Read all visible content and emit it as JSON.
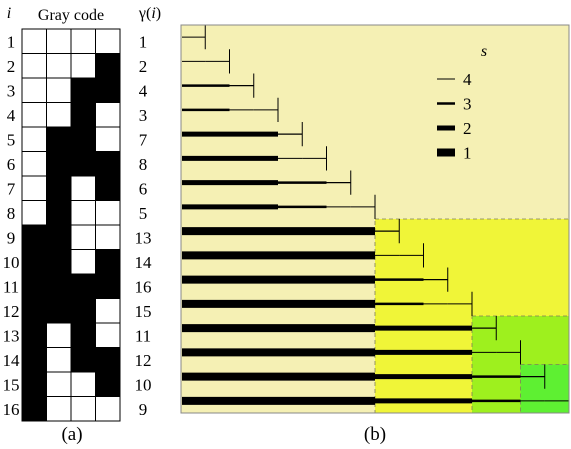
{
  "panel_a": {
    "caption": "(a)",
    "col_i_header": "i",
    "col_gray_header": "Gray code",
    "col_gamma_header_prefix": "γ(",
    "col_gamma_header_var": "i",
    "col_gamma_header_suffix": ")",
    "rows": [
      {
        "i": "1",
        "bits": [
          0,
          0,
          0,
          0
        ],
        "gamma": "1"
      },
      {
        "i": "2",
        "bits": [
          0,
          0,
          0,
          1
        ],
        "gamma": "2"
      },
      {
        "i": "3",
        "bits": [
          0,
          0,
          1,
          1
        ],
        "gamma": "4"
      },
      {
        "i": "4",
        "bits": [
          0,
          0,
          1,
          0
        ],
        "gamma": "3"
      },
      {
        "i": "5",
        "bits": [
          0,
          1,
          1,
          0
        ],
        "gamma": "7"
      },
      {
        "i": "6",
        "bits": [
          0,
          1,
          1,
          1
        ],
        "gamma": "8"
      },
      {
        "i": "7",
        "bits": [
          0,
          1,
          0,
          1
        ],
        "gamma": "6"
      },
      {
        "i": "8",
        "bits": [
          0,
          1,
          0,
          0
        ],
        "gamma": "5"
      },
      {
        "i": "9",
        "bits": [
          1,
          1,
          0,
          0
        ],
        "gamma": "13"
      },
      {
        "i": "10",
        "bits": [
          1,
          1,
          0,
          1
        ],
        "gamma": "14"
      },
      {
        "i": "11",
        "bits": [
          1,
          1,
          1,
          1
        ],
        "gamma": "16"
      },
      {
        "i": "12",
        "bits": [
          1,
          1,
          1,
          0
        ],
        "gamma": "15"
      },
      {
        "i": "13",
        "bits": [
          1,
          0,
          1,
          0
        ],
        "gamma": "11"
      },
      {
        "i": "14",
        "bits": [
          1,
          0,
          1,
          1
        ],
        "gamma": "12"
      },
      {
        "i": "15",
        "bits": [
          1,
          0,
          0,
          1
        ],
        "gamma": "10"
      },
      {
        "i": "16",
        "bits": [
          1,
          0,
          0,
          0
        ],
        "gamma": "9"
      }
    ]
  },
  "panel_b": {
    "caption": "(b)",
    "legend_title": "s",
    "legend": [
      {
        "label": "4",
        "width": 1
      },
      {
        "label": "3",
        "width": 2.5
      },
      {
        "label": "2",
        "width": 5
      },
      {
        "label": "1",
        "width": 8
      }
    ],
    "staircase": {
      "n": 16,
      "change_level": [
        4,
        3,
        4,
        2,
        4,
        3,
        4,
        1,
        4,
        3,
        4,
        2,
        4,
        3,
        4
      ]
    },
    "colors": {
      "base": "#f5f0b4",
      "yellow": "#f0f538",
      "light_green": "#9ef01e",
      "bright_green": "#5ef032",
      "frame": "#888888"
    }
  }
}
